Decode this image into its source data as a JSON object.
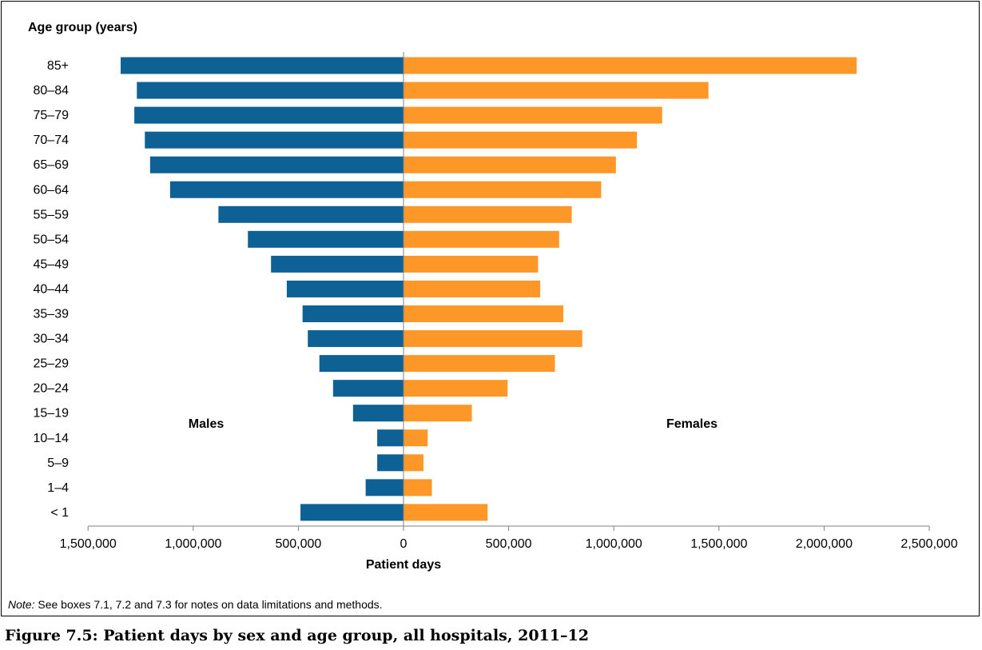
{
  "chart_data": {
    "type": "bar",
    "orientation": "horizontal-diverging",
    "categories": [
      "85+",
      "80–84",
      "75–79",
      "70–74",
      "65–69",
      "60–64",
      "55–59",
      "50–54",
      "45–49",
      "40–44",
      "35–39",
      "30–34",
      "25–29",
      "20–24",
      "15–19",
      "10–14",
      "5–9",
      "1–4",
      "< 1"
    ],
    "series": [
      {
        "name": "Males",
        "color": "#0e6195",
        "values": [
          1345000,
          1268000,
          1280000,
          1230000,
          1205000,
          1110000,
          880000,
          740000,
          630000,
          555000,
          480000,
          455000,
          400000,
          335000,
          240000,
          125000,
          125000,
          180000,
          490000
        ]
      },
      {
        "name": "Females",
        "color": "#fd9727",
        "values": [
          2155000,
          1450000,
          1230000,
          1110000,
          1010000,
          940000,
          800000,
          740000,
          640000,
          650000,
          760000,
          850000,
          720000,
          495000,
          325000,
          115000,
          95000,
          135000,
          400000
        ]
      }
    ],
    "xaxis": {
      "label": "Patient days",
      "ticks": [
        "1,500,000",
        "1,000,000",
        "500,000",
        "0",
        "500,000",
        "1,000,000",
        "1,500,000",
        "2,000,000",
        "2,500,000"
      ],
      "range": [
        -1500000,
        2500000
      ]
    },
    "yaxis": {
      "label": "Age group (years)"
    },
    "grid": false,
    "legend": "inline labels"
  },
  "note": {
    "label": "Note:",
    "text": " See boxes 7.1, 7.2 and 7.3 for notes on data limitations and methods."
  },
  "caption": "Figure 7.5: Patient days by sex and age group, all hospitals, 2011–12"
}
